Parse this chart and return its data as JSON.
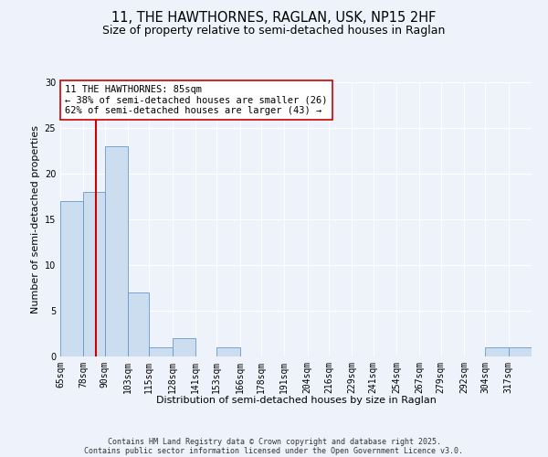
{
  "title": "11, THE HAWTHORNES, RAGLAN, USK, NP15 2HF",
  "subtitle": "Size of property relative to semi-detached houses in Raglan",
  "xlabel": "Distribution of semi-detached houses by size in Raglan",
  "ylabel": "Number of semi-detached properties",
  "bin_labels": [
    "65sqm",
    "78sqm",
    "90sqm",
    "103sqm",
    "115sqm",
    "128sqm",
    "141sqm",
    "153sqm",
    "166sqm",
    "178sqm",
    "191sqm",
    "204sqm",
    "216sqm",
    "229sqm",
    "241sqm",
    "254sqm",
    "267sqm",
    "279sqm",
    "292sqm",
    "304sqm",
    "317sqm"
  ],
  "bin_edges": [
    65,
    78,
    90,
    103,
    115,
    128,
    141,
    153,
    166,
    178,
    191,
    204,
    216,
    229,
    241,
    254,
    267,
    279,
    292,
    304,
    317,
    330
  ],
  "bar_values": [
    17,
    18,
    23,
    7,
    1,
    2,
    0,
    1,
    0,
    0,
    0,
    0,
    0,
    0,
    0,
    0,
    0,
    0,
    0,
    1,
    1
  ],
  "bar_color": "#ccddf0",
  "bar_edge_color": "#6699cc",
  "property_size": 85,
  "property_line_color": "#cc0000",
  "annotation_line1": "11 THE HAWTHORNES: 85sqm",
  "annotation_line2": "← 38% of semi-detached houses are smaller (26)",
  "annotation_line3": "62% of semi-detached houses are larger (43) →",
  "annotation_box_color": "#ffffff",
  "annotation_box_edge": "#cc0000",
  "ylim": [
    0,
    30
  ],
  "yticks": [
    0,
    5,
    10,
    15,
    20,
    25,
    30
  ],
  "background_color": "#eef2fb",
  "footer_line1": "Contains HM Land Registry data © Crown copyright and database right 2025.",
  "footer_line2": "Contains public sector information licensed under the Open Government Licence v3.0.",
  "title_fontsize": 10.5,
  "subtitle_fontsize": 9,
  "axis_label_fontsize": 8,
  "tick_fontsize": 7,
  "annotation_fontsize": 7.5,
  "footer_fontsize": 6
}
